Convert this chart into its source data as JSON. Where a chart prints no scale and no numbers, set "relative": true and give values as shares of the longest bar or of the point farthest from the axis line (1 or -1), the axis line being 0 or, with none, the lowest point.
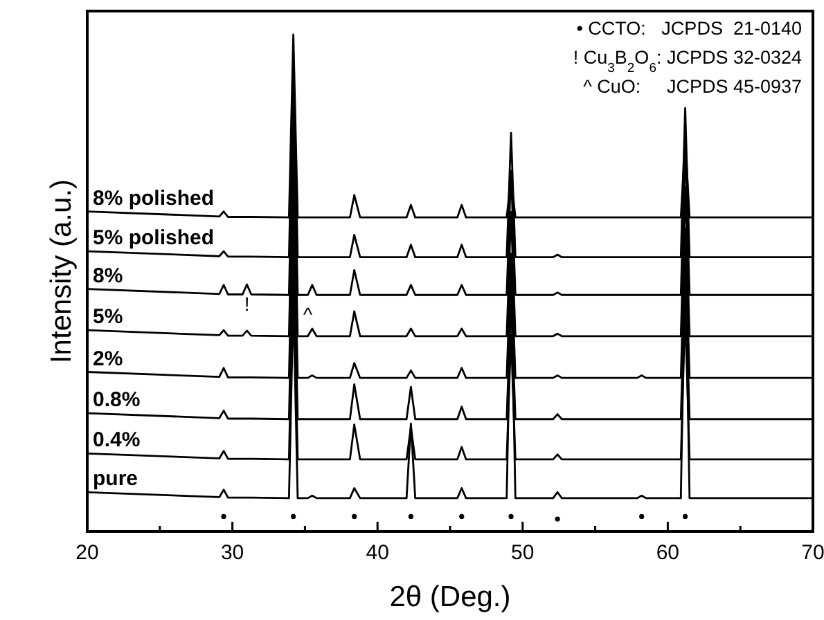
{
  "chart_data": {
    "type": "line",
    "relative": true,
    "xlabel": "2θ (Deg.)",
    "ylabel": "Intensity (a.u.)",
    "xlim": [
      20,
      70
    ],
    "xticks": [
      20,
      {
        "value": 25,
        "label": null
      },
      30,
      {
        "value": 35,
        "label": null
      },
      40,
      {
        "value": 45,
        "label": null
      },
      50,
      {
        "value": 55,
        "label": null
      },
      60,
      {
        "value": 65,
        "label": null
      },
      70
    ],
    "tick_labels": "x",
    "grid": false,
    "legend": false,
    "marker": "none",
    "line_style": "solid",
    "x": [
      20,
      29.1,
      29.4,
      29.7,
      30.7,
      31.0,
      31.3,
      33.9,
      34.2,
      34.5,
      35.2,
      35.5,
      35.8,
      38.1,
      38.4,
      38.8,
      42.0,
      42.3,
      42.6,
      45.5,
      45.8,
      46.1,
      48.9,
      49.2,
      49.5,
      52.1,
      52.4,
      52.7,
      57.9,
      58.2,
      58.5,
      60.9,
      61.2,
      61.5,
      70
    ],
    "series": [
      {
        "name": "pure",
        "color": "#000000",
        "values": [
          0.079,
          0.069,
          0.084,
          0.068,
          0.068,
          0.068,
          0.068,
          0.067,
          0.467,
          0.067,
          0.067,
          0.072,
          0.067,
          0.067,
          0.087,
          0.067,
          0.067,
          0.217,
          0.067,
          0.067,
          0.087,
          0.067,
          0.067,
          0.517,
          0.067,
          0.067,
          0.079,
          0.067,
          0.067,
          0.072,
          0.067,
          0.067,
          0.567,
          0.067,
          0.067
        ]
      },
      {
        "name": "0.4%",
        "color": "#000000",
        "values": [
          0.157,
          0.147,
          0.162,
          0.146,
          0.146,
          0.146,
          0.146,
          0.145,
          0.545,
          0.145,
          0.145,
          0.145,
          0.145,
          0.145,
          0.215,
          0.145,
          0.145,
          0.21,
          0.145,
          0.145,
          0.17,
          0.145,
          0.145,
          0.395,
          0.145,
          0.145,
          0.155,
          0.145,
          0.145,
          0.145,
          0.145,
          0.145,
          0.445,
          0.145,
          0.145
        ]
      },
      {
        "name": "0.8%",
        "color": "#000000",
        "values": [
          0.238,
          0.228,
          0.243,
          0.227,
          0.227,
          0.227,
          0.227,
          0.226,
          0.626,
          0.226,
          0.226,
          0.226,
          0.226,
          0.226,
          0.296,
          0.226,
          0.226,
          0.291,
          0.226,
          0.226,
          0.251,
          0.226,
          0.226,
          0.476,
          0.226,
          0.226,
          0.236,
          0.226,
          0.226,
          0.226,
          0.226,
          0.226,
          0.526,
          0.226,
          0.226
        ]
      },
      {
        "name": "2%",
        "color": "#000000",
        "values": [
          0.321,
          0.311,
          0.329,
          0.31,
          0.31,
          0.31,
          0.31,
          0.309,
          0.709,
          0.309,
          0.309,
          0.314,
          0.309,
          0.309,
          0.339,
          0.309,
          0.309,
          0.324,
          0.309,
          0.309,
          0.329,
          0.309,
          0.309,
          0.559,
          0.309,
          0.309,
          0.314,
          0.309,
          0.309,
          0.314,
          0.309,
          0.309,
          0.609,
          0.309,
          0.309
        ]
      },
      {
        "name": "5%",
        "color": "#000000",
        "values": [
          0.405,
          0.395,
          0.405,
          0.394,
          0.394,
          0.404,
          0.394,
          0.393,
          0.793,
          0.393,
          0.393,
          0.408,
          0.393,
          0.393,
          0.443,
          0.393,
          0.393,
          0.408,
          0.393,
          0.393,
          0.408,
          0.393,
          0.393,
          0.643,
          0.393,
          0.393,
          0.398,
          0.393,
          0.393,
          0.393,
          0.393,
          0.393,
          0.693,
          0.393,
          0.393
        ]
      },
      {
        "name": "8%",
        "color": "#000000",
        "values": [
          0.488,
          0.478,
          0.496,
          0.477,
          0.477,
          0.497,
          0.477,
          0.476,
          0.876,
          0.476,
          0.476,
          0.496,
          0.476,
          0.476,
          0.526,
          0.476,
          0.476,
          0.496,
          0.476,
          0.476,
          0.496,
          0.476,
          0.476,
          0.726,
          0.476,
          0.476,
          0.481,
          0.476,
          0.476,
          0.476,
          0.476,
          0.476,
          0.776,
          0.476,
          0.476
        ]
      },
      {
        "name": "5% polished",
        "color": "#000000",
        "values": [
          0.564,
          0.554,
          0.564,
          0.553,
          0.553,
          0.553,
          0.553,
          0.552,
          0.952,
          0.552,
          0.552,
          0.552,
          0.552,
          0.552,
          0.597,
          0.552,
          0.552,
          0.577,
          0.552,
          0.552,
          0.577,
          0.552,
          0.552,
          0.802,
          0.552,
          0.552,
          0.557,
          0.552,
          0.552,
          0.552,
          0.552,
          0.552,
          0.852,
          0.552,
          0.552
        ]
      },
      {
        "name": "8% polished",
        "color": "#000000",
        "values": [
          0.644,
          0.634,
          0.644,
          0.633,
          0.633,
          0.633,
          0.633,
          0.632,
          1.0,
          0.632,
          0.632,
          0.632,
          0.632,
          0.632,
          0.677,
          0.632,
          0.632,
          0.657,
          0.632,
          0.632,
          0.657,
          0.632,
          0.632,
          0.713,
          0.632,
          0.632,
          0.632,
          0.632,
          0.632,
          0.632,
          0.632,
          0.632,
          0.79,
          0.632,
          0.632
        ]
      },
      {
        "type": "scatter",
        "marker": "circle",
        "color": "#000000",
        "x": [
          29.4,
          34.2,
          38.4,
          42.3,
          45.8,
          49.2,
          52.4,
          58.2,
          61.2
        ],
        "values": [
          0.03,
          0.03,
          0.03,
          0.03,
          0.03,
          0.03,
          0.025,
          0.03,
          0.03
        ]
      }
    ],
    "annotations": [
      "• CCTO:   JCPDS  21-0140",
      "! Cu$_{3}$B$_{2}$O$_{6}$: JCPDS 32-0324",
      "^ CuO:     JCPDS 45-0937",
      {
        "text": "!",
        "x": 31.0,
        "y": 0.497
      },
      {
        "text": "^",
        "x": 35.2,
        "y": 0.476
      }
    ]
  }
}
